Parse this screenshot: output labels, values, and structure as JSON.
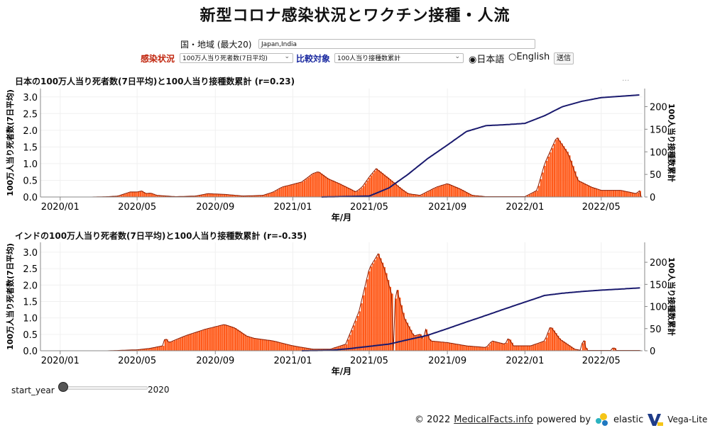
{
  "title": "新型コロナ感染状況とワクチン接種・人流",
  "controls": {
    "region_label": "国・地域 (最大20)",
    "region_value": "Japan,India",
    "infection_label": "感染状況",
    "infection_value": "100万人当り死者数(7日平均)",
    "compare_label": "比較対象",
    "compare_value": "100人当り接種数累計",
    "lang_ja": "日本語",
    "lang_en": "English",
    "lang_selected": "ja",
    "submit": "送信"
  },
  "more_menu": "...",
  "colors": {
    "bars": "#ff5a1a",
    "bar_edge": "#8a1a00",
    "line": "#1a1a6e"
  },
  "chart_data": [
    {
      "type": "bar+line",
      "title": "日本の100万人当り死者数(7日平均)と100人当り接種数累計 (r=0.23)",
      "xlabel": "年/月",
      "ylabel_left": "100万人当り死者数(7日平均)",
      "ylabel_right": "100人当り接種数累計",
      "x_ticks": [
        "2020/01",
        "2020/05",
        "2020/09",
        "2021/01",
        "2021/05",
        "2021/09",
        "2022/01",
        "2022/05"
      ],
      "y_left_ticks": [
        "0.0",
        "0.5",
        "1.0",
        "1.5",
        "2.0",
        "2.5",
        "3.0"
      ],
      "y_right_ticks": [
        "0",
        "50",
        "100",
        "150",
        "200"
      ],
      "y_left_range": [
        0,
        3.25
      ],
      "y_right_range": [
        0,
        240
      ],
      "x_range": [
        "2019-12-01",
        "2022-07-05"
      ],
      "deaths": [
        [
          "2020-02-20",
          0
        ],
        [
          "2020-03-15",
          0.01
        ],
        [
          "2020-04-01",
          0.03
        ],
        [
          "2020-04-20",
          0.15
        ],
        [
          "2020-05-01",
          0.15
        ],
        [
          "2020-05-08",
          0.18
        ],
        [
          "2020-05-15",
          0.1
        ],
        [
          "2020-05-22",
          0.12
        ],
        [
          "2020-06-01",
          0.05
        ],
        [
          "2020-07-01",
          0.01
        ],
        [
          "2020-08-01",
          0.03
        ],
        [
          "2020-08-20",
          0.1
        ],
        [
          "2020-09-15",
          0.08
        ],
        [
          "2020-10-15",
          0.03
        ],
        [
          "2020-11-15",
          0.05
        ],
        [
          "2020-12-01",
          0.15
        ],
        [
          "2020-12-15",
          0.3
        ],
        [
          "2021-01-01",
          0.38
        ],
        [
          "2021-01-15",
          0.45
        ],
        [
          "2021-02-01",
          0.7
        ],
        [
          "2021-02-10",
          0.76
        ],
        [
          "2021-02-25",
          0.55
        ],
        [
          "2021-03-15",
          0.4
        ],
        [
          "2021-03-31",
          0.25
        ],
        [
          "2021-04-10",
          0.15
        ],
        [
          "2021-04-20",
          0.3
        ],
        [
          "2021-05-01",
          0.6
        ],
        [
          "2021-05-12",
          0.85
        ],
        [
          "2021-06-01",
          0.55
        ],
        [
          "2021-06-20",
          0.25
        ],
        [
          "2021-07-01",
          0.1
        ],
        [
          "2021-07-20",
          0.05
        ],
        [
          "2021-08-15",
          0.3
        ],
        [
          "2021-09-01",
          0.4
        ],
        [
          "2021-09-20",
          0.25
        ],
        [
          "2021-10-10",
          0.05
        ],
        [
          "2021-11-01",
          0.01
        ],
        [
          "2022-01-01",
          0.01
        ],
        [
          "2022-01-20",
          0.2
        ],
        [
          "2022-02-01",
          1.0
        ],
        [
          "2022-02-20",
          1.8
        ],
        [
          "2022-03-10",
          1.3
        ],
        [
          "2022-03-25",
          0.5
        ],
        [
          "2022-04-15",
          0.3
        ],
        [
          "2022-05-01",
          0.2
        ],
        [
          "2022-06-01",
          0.2
        ],
        [
          "2022-06-25",
          0.1
        ],
        [
          "2022-07-01",
          0.2
        ]
      ],
      "vaccinations": [
        [
          "2021-02-15",
          0
        ],
        [
          "2021-05-01",
          2
        ],
        [
          "2021-06-01",
          20
        ],
        [
          "2021-07-01",
          50
        ],
        [
          "2021-08-01",
          85
        ],
        [
          "2021-09-01",
          115
        ],
        [
          "2021-10-01",
          145
        ],
        [
          "2021-11-01",
          158
        ],
        [
          "2021-12-01",
          160
        ],
        [
          "2022-01-01",
          163
        ],
        [
          "2022-02-01",
          180
        ],
        [
          "2022-03-01",
          200
        ],
        [
          "2022-04-01",
          212
        ],
        [
          "2022-05-01",
          220
        ],
        [
          "2022-07-01",
          226
        ]
      ]
    },
    {
      "type": "bar+line",
      "title": "インドの100万人当り死者数(7日平均)と100人当り接種数累計 (r=-0.35)",
      "xlabel": "年/月",
      "ylabel_left": "100万人当り死者数(7日平均)",
      "ylabel_right": "100人当り接種数累計",
      "x_ticks": [
        "2020/01",
        "2020/05",
        "2020/09",
        "2021/01",
        "2021/05",
        "2021/09",
        "2022/01",
        "2022/05"
      ],
      "y_left_ticks": [
        "0.0",
        "0.5",
        "1.0",
        "1.5",
        "2.0",
        "2.5",
        "3.0"
      ],
      "y_right_ticks": [
        "0",
        "50",
        "100",
        "150",
        "200"
      ],
      "y_left_range": [
        0,
        3.3
      ],
      "y_right_range": [
        0,
        245
      ],
      "x_range": [
        "2019-12-01",
        "2022-07-05"
      ],
      "deaths": [
        [
          "2020-03-15",
          0
        ],
        [
          "2020-05-01",
          0.03
        ],
        [
          "2020-05-20",
          0.07
        ],
        [
          "2020-06-10",
          0.15
        ],
        [
          "2020-06-14",
          0.4
        ],
        [
          "2020-06-20",
          0.25
        ],
        [
          "2020-07-15",
          0.45
        ],
        [
          "2020-08-15",
          0.65
        ],
        [
          "2020-09-15",
          0.8
        ],
        [
          "2020-10-01",
          0.7
        ],
        [
          "2020-10-20",
          0.45
        ],
        [
          "2020-11-01",
          0.38
        ],
        [
          "2020-12-01",
          0.3
        ],
        [
          "2021-01-01",
          0.15
        ],
        [
          "2021-02-01",
          0.05
        ],
        [
          "2021-03-01",
          0.05
        ],
        [
          "2021-03-25",
          0.2
        ],
        [
          "2021-04-15",
          1.2
        ],
        [
          "2021-05-01",
          2.5
        ],
        [
          "2021-05-15",
          2.95
        ],
        [
          "2021-05-25",
          2.5
        ],
        [
          "2021-06-07",
          1.6
        ],
        [
          "2021-06-08",
          0
        ],
        [
          "2021-06-10",
          1.5
        ],
        [
          "2021-06-14",
          1.85
        ],
        [
          "2021-06-25",
          1.0
        ],
        [
          "2021-07-10",
          0.45
        ],
        [
          "2021-07-20",
          0.5
        ],
        [
          "2021-07-25",
          0.3
        ],
        [
          "2021-07-28",
          0.7
        ],
        [
          "2021-08-05",
          0.3
        ],
        [
          "2021-09-01",
          0.25
        ],
        [
          "2021-10-01",
          0.15
        ],
        [
          "2021-11-01",
          0.1
        ],
        [
          "2021-11-10",
          0.3
        ],
        [
          "2021-12-01",
          0.2
        ],
        [
          "2021-12-06",
          0.4
        ],
        [
          "2021-12-14",
          0.15
        ],
        [
          "2022-01-10",
          0.15
        ],
        [
          "2022-02-01",
          0.3
        ],
        [
          "2022-02-10",
          0.75
        ],
        [
          "2022-02-25",
          0.35
        ],
        [
          "2022-03-20",
          0.05
        ],
        [
          "2022-03-31",
          0.01
        ],
        [
          "2022-04-02",
          0.45
        ],
        [
          "2022-04-08",
          0.01
        ],
        [
          "2022-05-18",
          0.01
        ],
        [
          "2022-05-20",
          0.15
        ],
        [
          "2022-05-24",
          0.01
        ],
        [
          "2022-07-01",
          0.01
        ]
      ],
      "vaccinations": [
        [
          "2021-01-15",
          0
        ],
        [
          "2021-03-01",
          1
        ],
        [
          "2021-04-01",
          5
        ],
        [
          "2021-05-01",
          10
        ],
        [
          "2021-06-01",
          15
        ],
        [
          "2021-07-01",
          25
        ],
        [
          "2021-08-01",
          35
        ],
        [
          "2021-09-01",
          50
        ],
        [
          "2021-10-01",
          65
        ],
        [
          "2021-11-01",
          80
        ],
        [
          "2021-12-01",
          95
        ],
        [
          "2022-01-01",
          110
        ],
        [
          "2022-02-01",
          125
        ],
        [
          "2022-03-01",
          130
        ],
        [
          "2022-04-01",
          134
        ],
        [
          "2022-05-01",
          137
        ],
        [
          "2022-07-01",
          142
        ]
      ]
    }
  ],
  "slider": {
    "label": "start_year",
    "value": "2020",
    "fraction": 0
  },
  "footer": {
    "copyright": "© 2022",
    "site": "MedicalFacts.info",
    "powered": "powered by",
    "elastic": "elastic",
    "vega": "Vega-Lite"
  }
}
